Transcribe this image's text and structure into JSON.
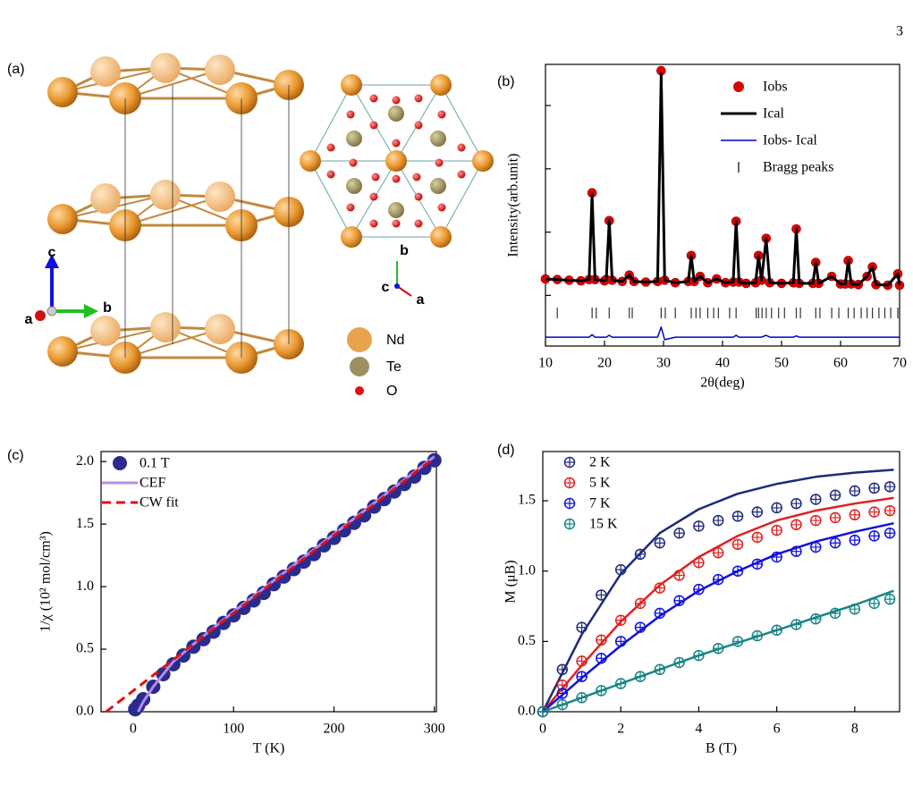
{
  "page_number": "3",
  "panel_a": {
    "label": "(a)",
    "side_axes": [
      "c",
      "b",
      "a"
    ],
    "top_axes": [
      "b",
      "c",
      "a"
    ],
    "legend": [
      {
        "name": "Nd",
        "color": "#e8a34e"
      },
      {
        "name": "Te",
        "color": "#9c9060"
      },
      {
        "name": "O",
        "color": "#e01010"
      }
    ]
  },
  "chart_data": [
    {
      "type": "line",
      "panel": "(b)",
      "xlabel": "2θ(deg)",
      "ylabel": "Intensity(arb.unit)",
      "xlim": [
        10,
        70
      ],
      "xticks": [
        10,
        20,
        30,
        40,
        50,
        60,
        70
      ],
      "ylim": [
        -0.8,
        3.65
      ],
      "yticks": [
        0,
        1,
        2,
        3
      ],
      "show_ytick_labels": false,
      "x": [
        10,
        12,
        14,
        16,
        17.4,
        17.9,
        18.4,
        20,
        20.3,
        20.8,
        21.3,
        23,
        24.2,
        25,
        27,
        29,
        29.6,
        30.2,
        32,
        34.2,
        34.7,
        35.2,
        36.2,
        37.5,
        39,
        40.5,
        41.8,
        42.3,
        42.8,
        44,
        45.6,
        46.1,
        46.6,
        47.4,
        48,
        50,
        52,
        52.5,
        53,
        55.3,
        55.8,
        56.3,
        58.5,
        60,
        60.8,
        61.3,
        61.8,
        63,
        64.5,
        65.4,
        66,
        68,
        69.7,
        70
      ],
      "series": [
        {
          "name": "Iobs",
          "color": "#e00000",
          "style": "markers",
          "values": [
            0.26,
            0.25,
            0.24,
            0.23,
            0.25,
            1.62,
            0.25,
            0.23,
            0.25,
            1.18,
            0.24,
            0.22,
            0.32,
            0.22,
            0.21,
            0.22,
            3.55,
            0.24,
            0.2,
            0.22,
            0.63,
            0.22,
            0.3,
            0.2,
            0.26,
            0.2,
            0.21,
            1.17,
            0.21,
            0.19,
            0.2,
            0.63,
            0.24,
            0.9,
            0.2,
            0.19,
            0.2,
            1.05,
            0.19,
            0.19,
            0.52,
            0.19,
            0.3,
            0.18,
            0.18,
            0.55,
            0.18,
            0.17,
            0.3,
            0.45,
            0.17,
            0.16,
            0.34,
            0.16
          ]
        },
        {
          "name": "Ical",
          "color": "#000000",
          "style": "line",
          "width": 3,
          "values": [
            0.26,
            0.25,
            0.24,
            0.23,
            0.25,
            1.6,
            0.25,
            0.23,
            0.25,
            1.18,
            0.24,
            0.22,
            0.32,
            0.22,
            0.21,
            0.22,
            3.5,
            0.24,
            0.2,
            0.22,
            0.63,
            0.22,
            0.3,
            0.2,
            0.26,
            0.2,
            0.21,
            1.17,
            0.21,
            0.19,
            0.2,
            0.63,
            0.24,
            0.9,
            0.2,
            0.19,
            0.2,
            1.05,
            0.19,
            0.19,
            0.52,
            0.19,
            0.3,
            0.18,
            0.18,
            0.55,
            0.18,
            0.17,
            0.3,
            0.45,
            0.17,
            0.16,
            0.34,
            0.16
          ]
        },
        {
          "name": "Iobs- Ical",
          "color": "#0000cc",
          "style": "line",
          "width": 1.5,
          "values": [
            -0.66,
            -0.66,
            -0.66,
            -0.66,
            -0.66,
            -0.62,
            -0.66,
            -0.66,
            -0.66,
            -0.63,
            -0.66,
            -0.66,
            -0.66,
            -0.66,
            -0.66,
            -0.66,
            -0.5,
            -0.7,
            -0.66,
            -0.66,
            -0.66,
            -0.66,
            -0.66,
            -0.66,
            -0.66,
            -0.66,
            -0.66,
            -0.63,
            -0.66,
            -0.66,
            -0.66,
            -0.66,
            -0.66,
            -0.63,
            -0.66,
            -0.66,
            -0.66,
            -0.64,
            -0.66,
            -0.66,
            -0.66,
            -0.66,
            -0.66,
            -0.66,
            -0.66,
            -0.66,
            -0.66,
            -0.66,
            -0.66,
            -0.66,
            -0.66,
            -0.66,
            -0.66,
            -0.66
          ]
        }
      ],
      "bragg": {
        "name": "Bragg peaks",
        "color": "#333333",
        "positions": [
          12,
          17.9,
          18.6,
          20.8,
          24.2,
          24.7,
          29.6,
          30.3,
          32,
          34.7,
          35.5,
          36.2,
          37.5,
          38.5,
          39.3,
          41.2,
          42.3,
          45.7,
          46.1,
          46.7,
          47.4,
          48.3,
          49.5,
          50.5,
          52.5,
          53.2,
          55.8,
          56.5,
          58.5,
          59.7,
          61.3,
          62.3,
          63.5,
          64.5,
          65.4,
          66.5,
          67.5,
          68.5,
          69.7
        ]
      }
    },
    {
      "type": "scatter",
      "panel": "(c)",
      "xlabel": "T (K)",
      "ylabel": "1/χ (10² mol/cm³)",
      "xlim": [
        -32,
        302
      ],
      "xticks": [
        0,
        100,
        200,
        300
      ],
      "ylim": [
        0,
        2.08
      ],
      "yticks": [
        {
          "value": 0,
          "label": "0.0"
        },
        {
          "value": 0.5,
          "label": "0.5"
        },
        {
          "value": 1,
          "label": "1.0"
        },
        {
          "value": 1.5,
          "label": "1.5"
        },
        {
          "value": 2,
          "label": "2.0"
        }
      ],
      "series": [
        {
          "name": "0.1 T",
          "color": "#2b2b8c",
          "style": "markers",
          "x": [
            2,
            5,
            10,
            20,
            30,
            40,
            50,
            60,
            70,
            80,
            90,
            100,
            110,
            120,
            130,
            140,
            150,
            160,
            170,
            180,
            190,
            200,
            210,
            220,
            230,
            240,
            250,
            260,
            270,
            280,
            290,
            300
          ],
          "values": [
            0.02,
            0.05,
            0.1,
            0.2,
            0.3,
            0.38,
            0.45,
            0.52,
            0.58,
            0.64,
            0.71,
            0.77,
            0.83,
            0.89,
            0.95,
            1.02,
            1.08,
            1.14,
            1.2,
            1.26,
            1.33,
            1.39,
            1.45,
            1.51,
            1.57,
            1.64,
            1.7,
            1.76,
            1.82,
            1.88,
            1.95,
            2.01
          ]
        },
        {
          "name": "CEF",
          "color": "#b38cf0",
          "style": "line",
          "x": [
            5,
            10,
            20,
            40,
            60,
            100,
            150,
            200,
            250,
            300
          ],
          "values": [
            0,
            0.08,
            0.2,
            0.4,
            0.54,
            0.8,
            1.11,
            1.42,
            1.73,
            2.04
          ]
        },
        {
          "name": "CW fit",
          "color": "#e01010",
          "style": "dashed",
          "x": [
            -27,
            300
          ],
          "values": [
            0,
            2.03
          ]
        }
      ]
    },
    {
      "type": "scatter",
      "panel": "(d)",
      "xlabel": "B (T)",
      "ylabel": "M (μB)",
      "xlim": [
        0,
        9.15
      ],
      "xticks": [
        0,
        2,
        4,
        6,
        8
      ],
      "ylim": [
        0,
        1.85
      ],
      "yticks": [
        {
          "value": 0,
          "label": "0.0"
        },
        {
          "value": 0.5,
          "label": "0.5"
        },
        {
          "value": 1,
          "label": "1.0"
        },
        {
          "value": 1.5,
          "label": "1.5"
        }
      ],
      "x": [
        0,
        0.5,
        1,
        1.5,
        2,
        2.5,
        3,
        3.5,
        4,
        4.5,
        5,
        5.5,
        6,
        6.5,
        7,
        7.5,
        8,
        8.5,
        8.9
      ],
      "series": [
        {
          "name": "2 K",
          "color": "#1f2a7a",
          "style": "crossed",
          "values": [
            0,
            0.3,
            0.6,
            0.83,
            1.01,
            1.12,
            1.2,
            1.27,
            1.32,
            1.36,
            1.39,
            1.42,
            1.45,
            1.48,
            1.51,
            1.54,
            1.57,
            1.59,
            1.6
          ]
        },
        {
          "name": "5 K",
          "color": "#e02020",
          "style": "crossed",
          "values": [
            0,
            0.19,
            0.36,
            0.51,
            0.65,
            0.77,
            0.88,
            0.97,
            1.06,
            1.13,
            1.19,
            1.24,
            1.29,
            1.33,
            1.36,
            1.38,
            1.4,
            1.42,
            1.43
          ]
        },
        {
          "name": "7 K",
          "color": "#1010e0",
          "style": "crossed",
          "values": [
            0,
            0.13,
            0.25,
            0.38,
            0.5,
            0.6,
            0.7,
            0.79,
            0.87,
            0.94,
            1.0,
            1.05,
            1.1,
            1.14,
            1.17,
            1.2,
            1.22,
            1.25,
            1.27
          ]
        },
        {
          "name": "15 K",
          "color": "#1a8585",
          "style": "crossed",
          "values": [
            0,
            0.05,
            0.1,
            0.15,
            0.2,
            0.25,
            0.3,
            0.35,
            0.4,
            0.45,
            0.5,
            0.54,
            0.58,
            0.62,
            0.66,
            0.7,
            0.73,
            0.77,
            0.8
          ]
        }
      ],
      "fit_x": [
        0,
        1,
        2,
        3,
        4,
        5,
        6,
        7,
        8,
        9
      ],
      "fits": [
        {
          "color": "#1f2a7a",
          "values": [
            0,
            0.55,
            0.98,
            1.27,
            1.44,
            1.55,
            1.62,
            1.67,
            1.7,
            1.72
          ]
        },
        {
          "color": "#e02020",
          "values": [
            0,
            0.33,
            0.64,
            0.9,
            1.1,
            1.25,
            1.36,
            1.43,
            1.48,
            1.52
          ]
        },
        {
          "color": "#1010e0",
          "values": [
            0,
            0.24,
            0.47,
            0.68,
            0.86,
            1.0,
            1.12,
            1.21,
            1.28,
            1.34
          ]
        },
        {
          "color": "#1a8585",
          "values": [
            0,
            0.1,
            0.2,
            0.3,
            0.4,
            0.49,
            0.58,
            0.67,
            0.76,
            0.86
          ]
        }
      ]
    }
  ]
}
